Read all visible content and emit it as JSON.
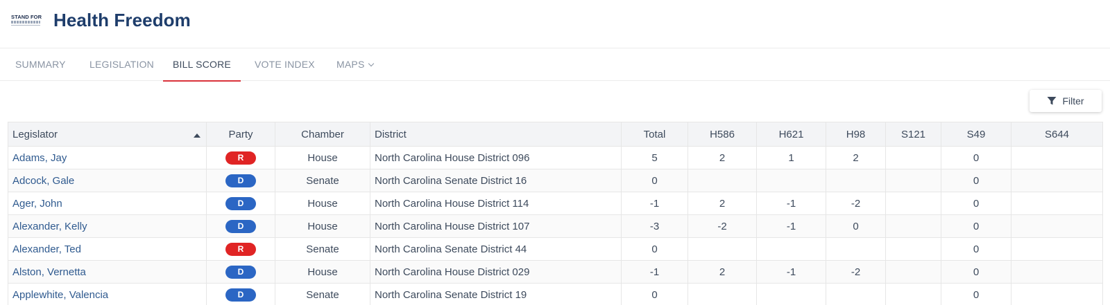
{
  "app": {
    "logo_text": "STAND FOR",
    "title": "Health Freedom"
  },
  "tabs": [
    {
      "label": "SUMMARY",
      "active": false
    },
    {
      "label": "LEGISLATION",
      "active": false
    },
    {
      "label": "BILL SCORE",
      "active": true
    },
    {
      "label": "VOTE INDEX",
      "active": false
    },
    {
      "label": "MAPS",
      "active": false,
      "has_dropdown": true
    }
  ],
  "toolbar": {
    "filter_label": "Filter",
    "filter_icon": "funnel-icon"
  },
  "table": {
    "columns": [
      "Legislator",
      "Party",
      "Chamber",
      "District",
      "Total",
      "H586",
      "H621",
      "H98",
      "S121",
      "S49",
      "S644"
    ],
    "sort_column": "Legislator",
    "sort_direction": "ascending",
    "party_colors": {
      "R": "#e02424",
      "D": "#2b66c4"
    },
    "rows": [
      {
        "legislator": "Adams, Jay",
        "party": "R",
        "chamber": "House",
        "district": "North Carolina House District 096",
        "total": "5",
        "h586": "2",
        "h621": "1",
        "h98": "2",
        "s121": "",
        "s49": "0",
        "s644": ""
      },
      {
        "legislator": "Adcock, Gale",
        "party": "D",
        "chamber": "Senate",
        "district": "North Carolina Senate District 16",
        "total": "0",
        "h586": "",
        "h621": "",
        "h98": "",
        "s121": "",
        "s49": "0",
        "s644": ""
      },
      {
        "legislator": "Ager, John",
        "party": "D",
        "chamber": "House",
        "district": "North Carolina House District 114",
        "total": "-1",
        "h586": "2",
        "h621": "-1",
        "h98": "-2",
        "s121": "",
        "s49": "0",
        "s644": ""
      },
      {
        "legislator": "Alexander, Kelly",
        "party": "D",
        "chamber": "House",
        "district": "North Carolina House District 107",
        "total": "-3",
        "h586": "-2",
        "h621": "-1",
        "h98": "0",
        "s121": "",
        "s49": "0",
        "s644": ""
      },
      {
        "legislator": "Alexander, Ted",
        "party": "R",
        "chamber": "Senate",
        "district": "North Carolina Senate District 44",
        "total": "0",
        "h586": "",
        "h621": "",
        "h98": "",
        "s121": "",
        "s49": "0",
        "s644": ""
      },
      {
        "legislator": "Alston, Vernetta",
        "party": "D",
        "chamber": "House",
        "district": "North Carolina House District 029",
        "total": "-1",
        "h586": "2",
        "h621": "-1",
        "h98": "-2",
        "s121": "",
        "s49": "0",
        "s644": ""
      },
      {
        "legislator": "Applewhite, Valencia",
        "party": "D",
        "chamber": "Senate",
        "district": "North Carolina Senate District 19",
        "total": "0",
        "h586": "",
        "h621": "",
        "h98": "",
        "s121": "",
        "s49": "0",
        "s644": ""
      }
    ]
  }
}
